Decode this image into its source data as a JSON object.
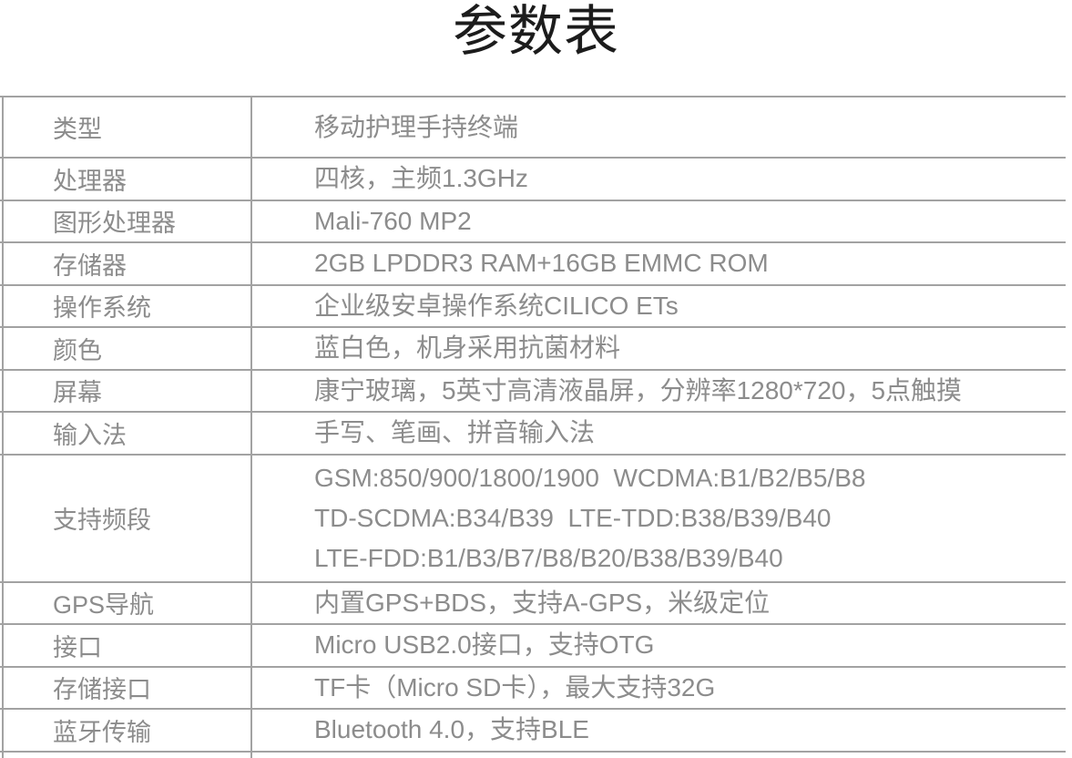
{
  "page": {
    "title": "参数表"
  },
  "colors": {
    "background": "#ffffff",
    "title_text": "#1c1c1c",
    "table_text": "#8c8c8c",
    "table_lines": "#a2a2a2"
  },
  "table": {
    "rows": [
      {
        "label": "类型",
        "values": [
          "移动护理手持终端"
        ]
      },
      {
        "label": "处理器",
        "values": [
          "四核，主频1.3GHz"
        ]
      },
      {
        "label": "图形处理器",
        "values": [
          "Mali-760 MP2"
        ]
      },
      {
        "label": "存储器",
        "values": [
          "2GB LPDDR3 RAM+16GB EMMC ROM"
        ]
      },
      {
        "label": "操作系统",
        "values": [
          "企业级安卓操作系统CILICO ETs"
        ]
      },
      {
        "label": "颜色",
        "values": [
          "蓝白色，机身采用抗菌材料"
        ]
      },
      {
        "label": "屏幕",
        "values": [
          "康宁玻璃，5英寸高清液晶屏，分辨率1280*720，5点触摸"
        ]
      },
      {
        "label": "输入法",
        "values": [
          "手写、笔画、拼音输入法"
        ]
      },
      {
        "label": "支持频段",
        "values": [
          "GSM:850/900/1800/1900  WCDMA:B1/B2/B5/B8",
          "TD-SCDMA:B34/B39  LTE-TDD:B38/B39/B40",
          "LTE-FDD:B1/B3/B7/B8/B20/B38/B39/B40"
        ]
      },
      {
        "label": "GPS导航",
        "values": [
          "内置GPS+BDS，支持A-GPS，米级定位"
        ]
      },
      {
        "label": "接口",
        "values": [
          "Micro USB2.0接口，支持OTG"
        ]
      },
      {
        "label": "存储接口",
        "values": [
          "TF卡（Micro SD卡），最大支持32G"
        ]
      },
      {
        "label": "蓝牙传输",
        "values": [
          "Bluetooth 4.0，支持BLE"
        ]
      }
    ]
  }
}
